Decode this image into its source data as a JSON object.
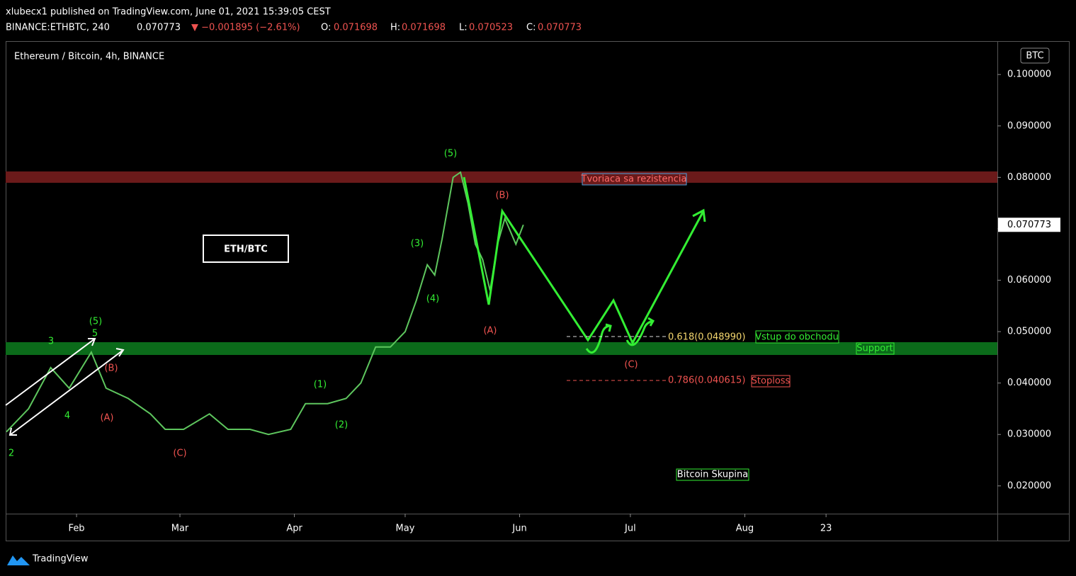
{
  "header": {
    "line1": "xlubecx1 published on TradingView.com, June 01, 2021 15:39:05 CEST",
    "symbol": "BINANCE:ETHBTC, 240",
    "last": "0.070773",
    "change": "▼ −0.001895 (−2.61%)",
    "o_label": "O:",
    "o": "0.071698",
    "h_label": "H:",
    "h": "0.071698",
    "l_label": "L:",
    "l": "0.070523",
    "c_label": "C:",
    "c": "0.070773"
  },
  "chart_data": {
    "type": "line",
    "title": "Ethereum / Bitcoin, 4h, BINANCE",
    "currency": "BTC",
    "color": "#5ec65e",
    "x": [
      13,
      19,
      25,
      30,
      36,
      40,
      46,
      52,
      56,
      61,
      68,
      73,
      79,
      84,
      90,
      94,
      100,
      105,
      109,
      113,
      117,
      121,
      124,
      127,
      129,
      131,
      134,
      136,
      138,
      140,
      142,
      144,
      146,
      148,
      151,
      153
    ],
    "values": [
      0.0305,
      0.035,
      0.043,
      0.039,
      0.046,
      0.039,
      0.037,
      0.034,
      0.031,
      0.031,
      0.034,
      0.031,
      0.031,
      0.03,
      0.031,
      0.036,
      0.036,
      0.037,
      0.04,
      0.047,
      0.047,
      0.05,
      0.056,
      0.063,
      0.061,
      0.068,
      0.08,
      0.081,
      0.075,
      0.067,
      0.064,
      0.058,
      0.067,
      0.072,
      0.067,
      0.070773
    ],
    "xlim": [
      12.8,
      281.4
    ],
    "xticks": [
      {
        "value": 32,
        "label": "Feb"
      },
      {
        "value": 60,
        "label": "Mar"
      },
      {
        "value": 91,
        "label": "Apr"
      },
      {
        "value": 121,
        "label": "May"
      },
      {
        "value": 152,
        "label": "Jun"
      },
      {
        "value": 182,
        "label": "Jul"
      },
      {
        "value": 213,
        "label": "Aug"
      },
      {
        "value": 235,
        "label": "23"
      }
    ],
    "ylim": [
      0.0146,
      0.1065
    ],
    "yticks": [
      {
        "value": 0.02,
        "label": "0.020000"
      },
      {
        "value": 0.03,
        "label": "0.030000"
      },
      {
        "value": 0.04,
        "label": "0.040000"
      },
      {
        "value": 0.05,
        "label": "0.050000"
      },
      {
        "value": 0.06,
        "label": "0.060000"
      },
      {
        "value": 0.07,
        "label": "0.070000"
      },
      {
        "value": 0.08,
        "label": "0.080000"
      },
      {
        "value": 0.09,
        "label": "0.090000"
      },
      {
        "value": 0.1,
        "label": "0.100000"
      }
    ],
    "last_label": "0.070773",
    "waves": [
      "(5)",
      "5",
      "3",
      "4",
      "2",
      "(B)",
      "(A)",
      "(C)",
      "(1)",
      "(2)",
      "(3)",
      "(4)",
      "(5)",
      "(B)",
      "(A)",
      "(C)"
    ],
    "annotations": {
      "pair": "ETH/BTC",
      "resistance": "Tvoriaca sa rezistencia",
      "entry": "Vstup do obchodu",
      "support": "Support",
      "stoploss": "Stoploss",
      "group": "Bitcoin Skupina",
      "fib618": "0.618(0.048990)",
      "fib786": "0.786(0.040615)"
    }
  },
  "footer": {
    "brand": "TradingView"
  }
}
